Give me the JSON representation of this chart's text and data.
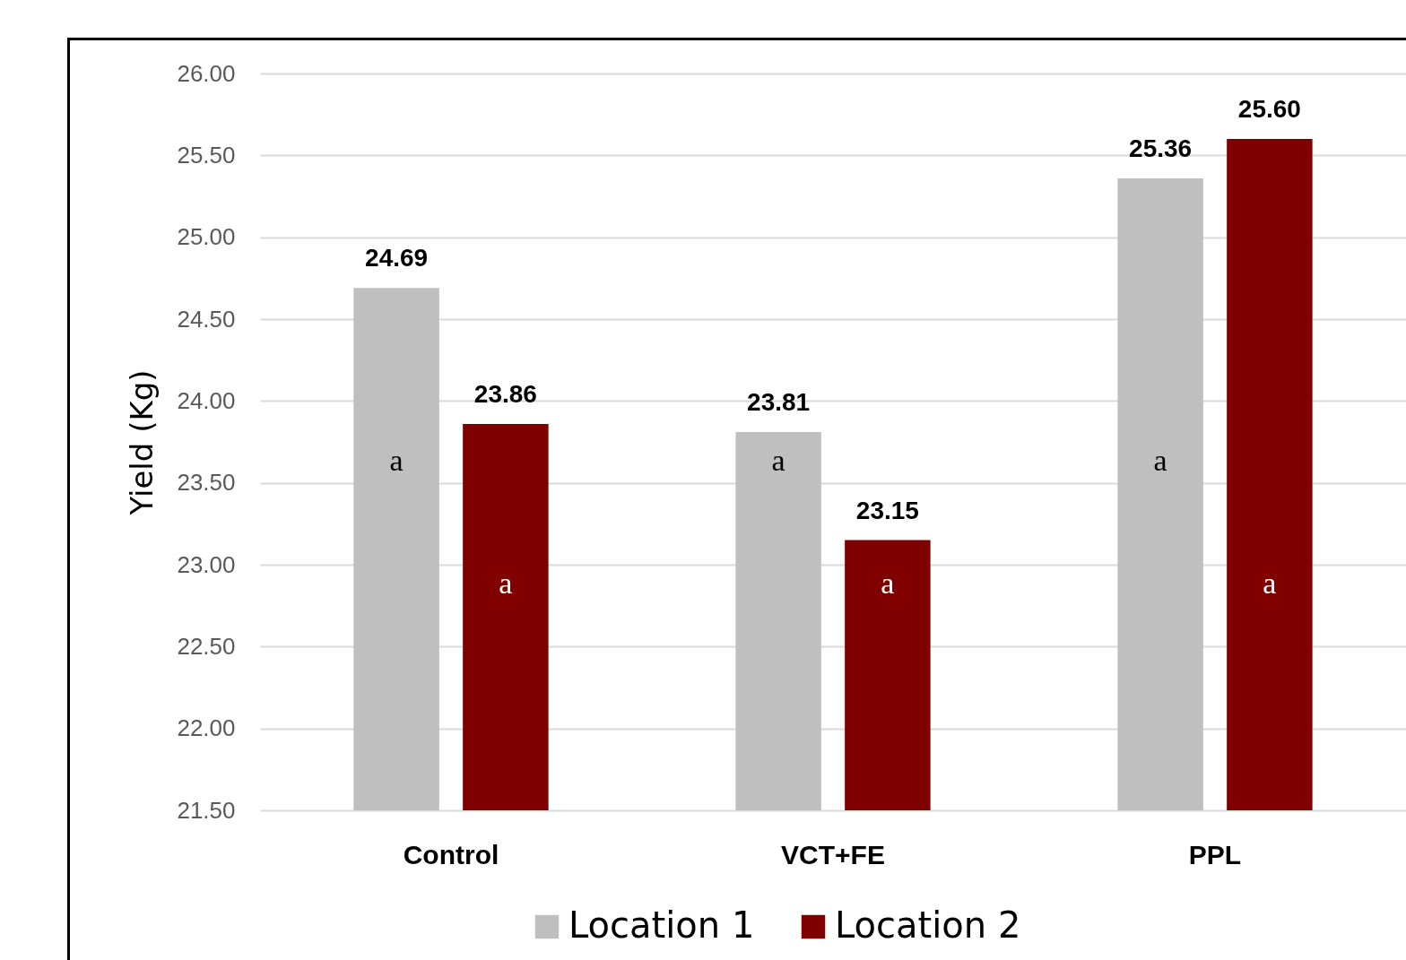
{
  "chart_data": {
    "type": "bar",
    "ylabel": "Yield (Kg)",
    "categories": [
      "Control",
      "VCT+FE",
      "PPL"
    ],
    "series": [
      {
        "name": "Location 1",
        "color": "#bfbfbf",
        "values": [
          24.69,
          23.81,
          25.36
        ],
        "value_labels": [
          "24.69",
          "23.81",
          "25.36"
        ]
      },
      {
        "name": "Location 2",
        "color": "#800000",
        "values": [
          23.86,
          23.15,
          25.6
        ],
        "value_labels": [
          "23.86",
          "23.15",
          "25.60"
        ]
      }
    ],
    "ylim": [
      21.5,
      26
    ],
    "yticks": [
      {
        "value": 21.5,
        "label": "21.50"
      },
      {
        "value": 22,
        "label": "22.00"
      },
      {
        "value": 22.5,
        "label": "22.50"
      },
      {
        "value": 23,
        "label": "23.00"
      },
      {
        "value": 23.5,
        "label": "23.50"
      },
      {
        "value": 24,
        "label": "24.00"
      },
      {
        "value": 24.5,
        "label": "24.50"
      },
      {
        "value": 25,
        "label": "25.00"
      },
      {
        "value": 25.5,
        "label": "25.50"
      },
      {
        "value": 26,
        "label": "26.00"
      }
    ],
    "grid": "y",
    "legend": "bottom",
    "annotations": [
      "a",
      "a",
      "a",
      "a",
      "a",
      "a"
    ]
  }
}
